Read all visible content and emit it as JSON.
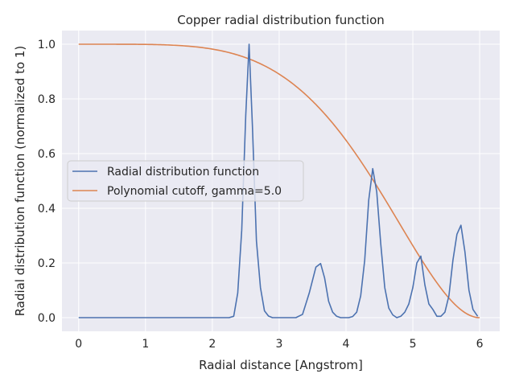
{
  "chart_data": {
    "type": "line",
    "title": "Copper radial distribution function",
    "xlabel": "Radial distance [Angstrom]",
    "ylabel": "Radial distribution function (normalized to 1)",
    "xlim": [
      -0.25,
      6.3
    ],
    "ylim": [
      -0.05,
      1.05
    ],
    "xticks": [
      0,
      1,
      2,
      3,
      4,
      5,
      6
    ],
    "yticks": [
      0.0,
      0.2,
      0.4,
      0.6,
      0.8,
      1.0
    ],
    "xtick_labels": [
      "0",
      "1",
      "2",
      "3",
      "4",
      "5",
      "6"
    ],
    "ytick_labels": [
      "0.0",
      "0.2",
      "0.4",
      "0.6",
      "0.8",
      "1.0"
    ],
    "grid": true,
    "legend_position": "center-left",
    "series": [
      {
        "name": "Radial distribution function",
        "color": "#4c72b0",
        "x": [
          0.0,
          2.25,
          2.32,
          2.38,
          2.44,
          2.5,
          2.55,
          2.6,
          2.66,
          2.72,
          2.78,
          2.84,
          2.9,
          2.96,
          3.02,
          3.1,
          3.25,
          3.35,
          3.45,
          3.55,
          3.62,
          3.68,
          3.74,
          3.8,
          3.86,
          3.92,
          3.98,
          4.04,
          4.1,
          4.16,
          4.22,
          4.28,
          4.34,
          4.4,
          4.46,
          4.52,
          4.58,
          4.64,
          4.7,
          4.76,
          4.82,
          4.88,
          4.94,
          5.0,
          5.06,
          5.12,
          5.18,
          5.24,
          5.3,
          5.36,
          5.42,
          5.48,
          5.54,
          5.6,
          5.66,
          5.72,
          5.78,
          5.84,
          5.9,
          5.97
        ],
        "y": [
          0.0,
          0.0,
          0.005,
          0.09,
          0.32,
          0.74,
          1.0,
          0.7,
          0.28,
          0.11,
          0.025,
          0.006,
          0.0,
          0.0,
          0.0,
          0.0,
          0.0,
          0.012,
          0.09,
          0.185,
          0.198,
          0.145,
          0.06,
          0.02,
          0.005,
          0.0,
          0.0,
          0.0,
          0.004,
          0.02,
          0.08,
          0.21,
          0.43,
          0.545,
          0.46,
          0.27,
          0.11,
          0.035,
          0.01,
          0.0,
          0.005,
          0.02,
          0.05,
          0.11,
          0.2,
          0.225,
          0.12,
          0.05,
          0.03,
          0.005,
          0.005,
          0.02,
          0.08,
          0.21,
          0.305,
          0.338,
          0.24,
          0.1,
          0.03,
          0.005
        ]
      },
      {
        "name": "Polynomial cutoff, gamma=5.0",
        "color": "#dd8452",
        "cutoff_radius": 6.0,
        "gamma": 5.0
      }
    ]
  }
}
